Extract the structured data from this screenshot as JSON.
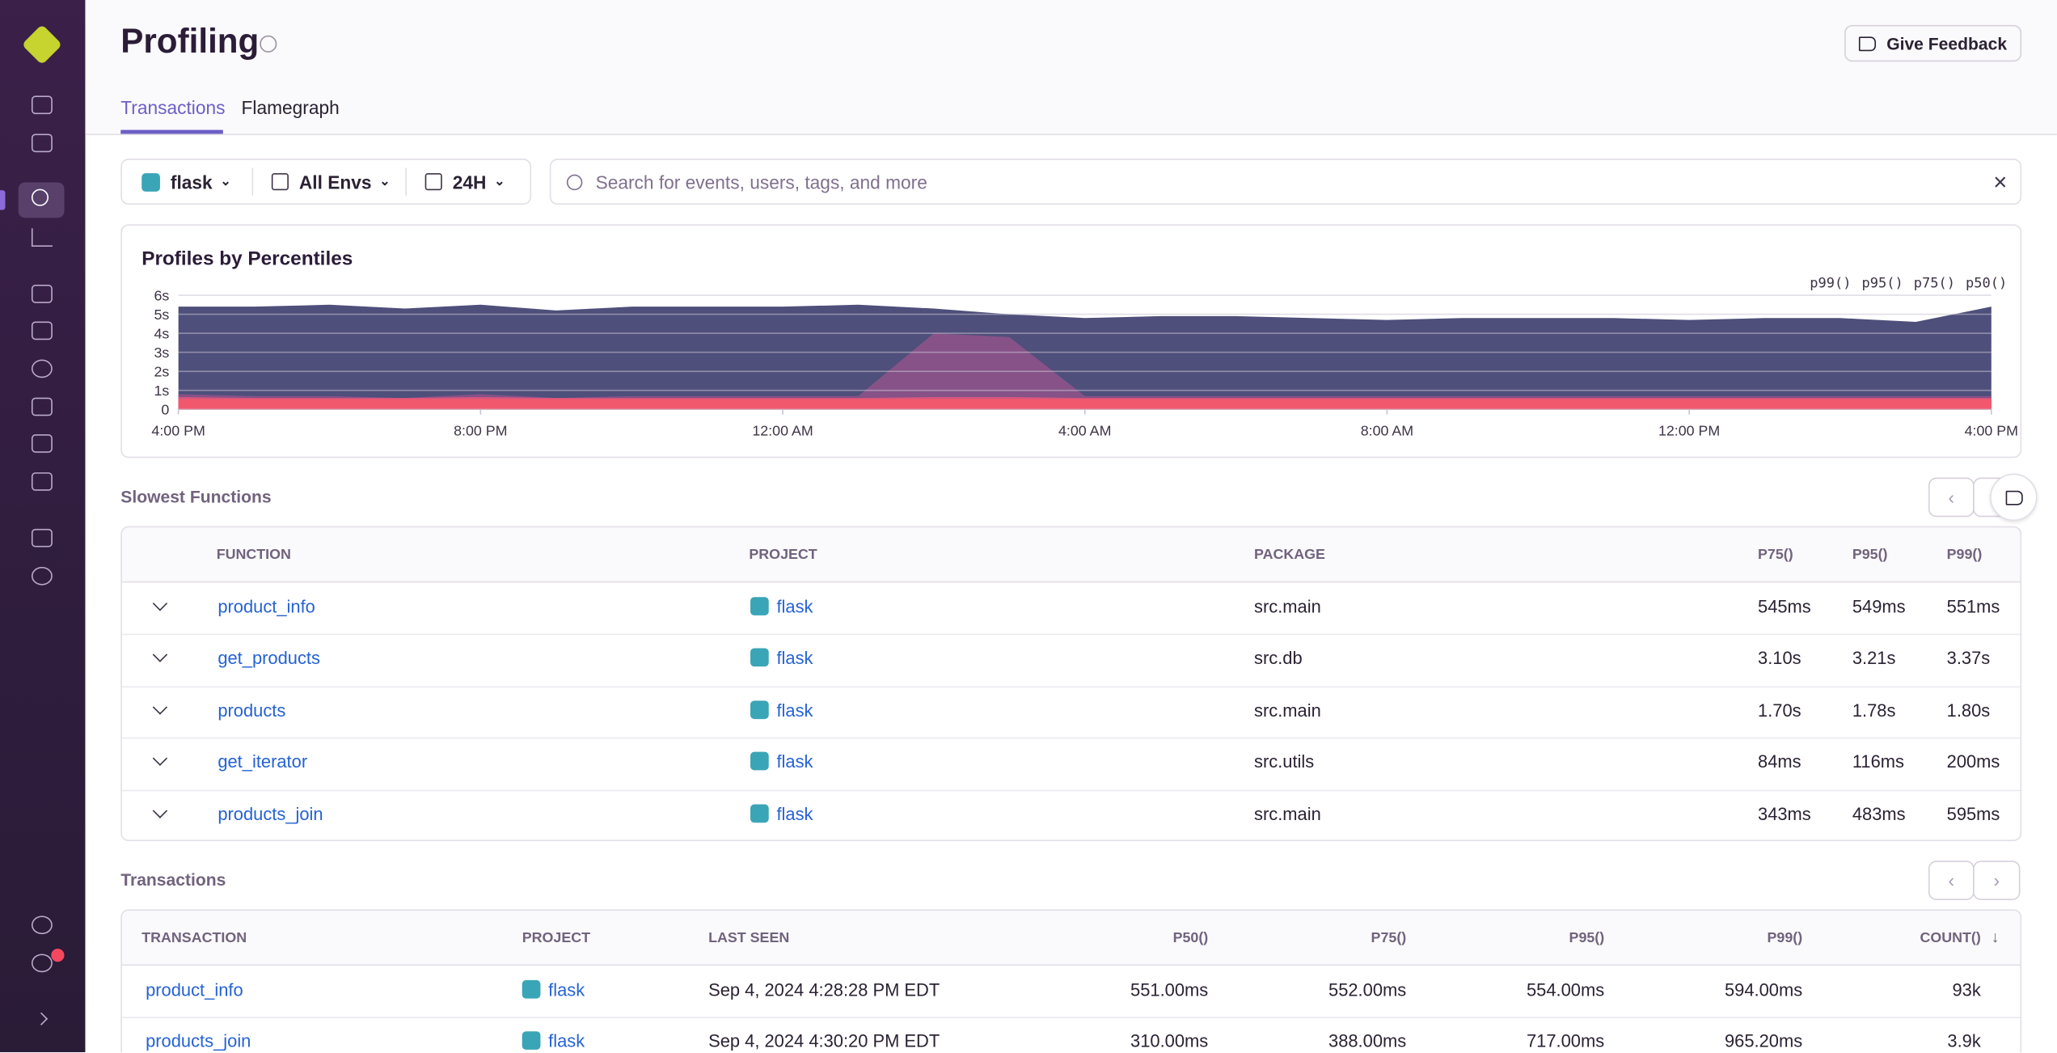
{
  "header": {
    "title": "Profiling",
    "feedback_button": "Give Feedback"
  },
  "tabs": [
    "Transactions",
    "Flamegraph"
  ],
  "filters": {
    "project": "flask",
    "environment": "All Envs",
    "period": "24H",
    "search_placeholder": "Search for events, users, tags, and more"
  },
  "chart_data": {
    "type": "area",
    "title": "Profiles by Percentiles",
    "x": [
      0,
      1,
      2,
      3,
      4,
      5,
      6,
      7,
      8,
      9,
      10,
      11,
      12,
      13,
      14,
      15,
      16,
      17,
      18,
      19,
      20,
      21,
      22,
      23,
      24
    ],
    "xlim": [
      0,
      24
    ],
    "xticks": [
      {
        "value": 0,
        "label": "4:00 PM"
      },
      {
        "value": 4,
        "label": "8:00 PM"
      },
      {
        "value": 8,
        "label": "12:00 AM"
      },
      {
        "value": 12,
        "label": "4:00 AM"
      },
      {
        "value": 16,
        "label": "8:00 AM"
      },
      {
        "value": 20,
        "label": "12:00 PM"
      },
      {
        "value": 24,
        "label": "4:00 PM"
      }
    ],
    "ylim": [
      0,
      6
    ],
    "yticks": [
      0,
      {
        "value": 1,
        "label": "1s"
      },
      {
        "value": 2,
        "label": "2s"
      },
      {
        "value": 3,
        "label": "3s"
      },
      {
        "value": 4,
        "label": "4s"
      },
      {
        "value": 5,
        "label": "5s"
      },
      {
        "value": 6,
        "label": "6s"
      }
    ],
    "grid": true,
    "legend": "top-right",
    "series": [
      {
        "name": "p99()",
        "color": "#444674",
        "values": [
          5.4,
          5.4,
          5.5,
          5.3,
          5.5,
          5.2,
          5.4,
          5.4,
          5.4,
          5.5,
          5.3,
          5.0,
          4.8,
          4.9,
          4.9,
          4.8,
          4.7,
          4.8,
          4.8,
          4.8,
          4.7,
          4.8,
          4.8,
          4.6,
          5.4
        ]
      },
      {
        "name": "p95()",
        "color": "#895289",
        "values": [
          0.8,
          0.7,
          0.7,
          0.6,
          0.8,
          0.6,
          0.7,
          0.7,
          0.7,
          0.7,
          4.0,
          3.8,
          0.7,
          0.7,
          0.7,
          0.7,
          0.7,
          0.7,
          0.7,
          0.7,
          0.7,
          0.7,
          0.7,
          0.7,
          0.7
        ]
      },
      {
        "name": "p75()",
        "color": "#d6567f",
        "values": [
          0.65,
          0.6,
          0.6,
          0.6,
          0.65,
          0.6,
          0.6,
          0.6,
          0.6,
          0.6,
          0.65,
          0.65,
          0.6,
          0.6,
          0.6,
          0.6,
          0.6,
          0.6,
          0.6,
          0.6,
          0.6,
          0.6,
          0.6,
          0.6,
          0.6
        ]
      },
      {
        "name": "p50()",
        "color": "#f2586c",
        "values": [
          0.55,
          0.55,
          0.55,
          0.55,
          0.55,
          0.55,
          0.55,
          0.55,
          0.55,
          0.55,
          0.55,
          0.55,
          0.55,
          0.55,
          0.55,
          0.55,
          0.55,
          0.55,
          0.55,
          0.55,
          0.55,
          0.55,
          0.55,
          0.55,
          0.55
        ]
      }
    ]
  },
  "slowest_functions": {
    "title": "Slowest Functions",
    "columns": [
      "FUNCTION",
      "PROJECT",
      "PACKAGE",
      "P75()",
      "P95()",
      "P99()"
    ],
    "rows": [
      [
        "product_info",
        "flask",
        "src.main",
        "545ms",
        "549ms",
        "551ms"
      ],
      [
        "get_products",
        "flask",
        "src.db",
        "3.10s",
        "3.21s",
        "3.37s"
      ],
      [
        "products",
        "flask",
        "src.main",
        "1.70s",
        "1.78s",
        "1.80s"
      ],
      [
        "get_iterator",
        "flask",
        "src.utils",
        "84ms",
        "116ms",
        "200ms"
      ],
      [
        "products_join",
        "flask",
        "src.main",
        "343ms",
        "483ms",
        "595ms"
      ]
    ]
  },
  "transactions": {
    "title": "Transactions",
    "columns": [
      "TRANSACTION",
      "PROJECT",
      "LAST SEEN",
      "P50()",
      "P75()",
      "P95()",
      "P99()",
      "COUNT()"
    ],
    "rows": [
      [
        "product_info",
        "flask",
        "Sep 4, 2024 4:28:28 PM EDT",
        "551.00ms",
        "552.00ms",
        "554.00ms",
        "594.00ms",
        "93k"
      ],
      [
        "products_join",
        "flask",
        "Sep 4, 2024 4:30:20 PM EDT",
        "310.00ms",
        "388.00ms",
        "717.00ms",
        "965.20ms",
        "3.9k"
      ]
    ]
  }
}
